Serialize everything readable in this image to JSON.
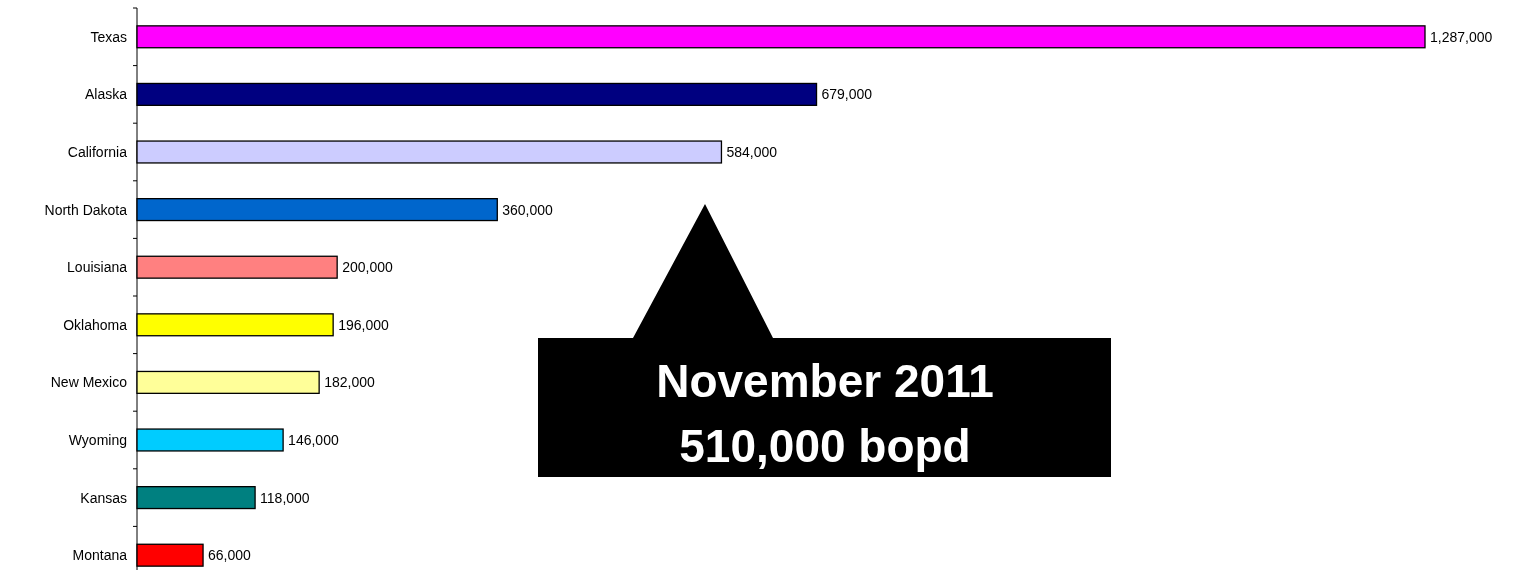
{
  "chart_data": {
    "type": "bar",
    "orientation": "horizontal",
    "categories": [
      "Texas",
      "Alaska",
      "California",
      "North Dakota",
      "Louisiana",
      "Oklahoma",
      "New Mexico",
      "Wyoming",
      "Kansas",
      "Montana"
    ],
    "values": [
      1287000,
      679000,
      584000,
      360000,
      200000,
      196000,
      182000,
      146000,
      118000,
      66000
    ],
    "colors": [
      "#ff00ff",
      "#000080",
      "#ccccff",
      "#0066cc",
      "#ff8080",
      "#ffff00",
      "#ffff99",
      "#00ccff",
      "#008080",
      "#ff0000"
    ],
    "value_labels": [
      "1,287,000",
      "679,000",
      "584,000",
      "360,000",
      "200,000",
      "196,000",
      "182,000",
      "146,000",
      "118,000",
      "66,000"
    ],
    "annotations": [
      "November 2011",
      "510,000 bopd"
    ]
  }
}
